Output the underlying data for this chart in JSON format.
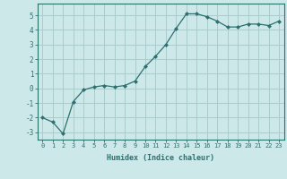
{
  "x": [
    0,
    1,
    2,
    3,
    4,
    5,
    6,
    7,
    8,
    9,
    10,
    11,
    12,
    13,
    14,
    15,
    16,
    17,
    18,
    19,
    20,
    21,
    22,
    23
  ],
  "y": [
    -2.0,
    -2.3,
    -3.1,
    -0.9,
    -0.1,
    0.1,
    0.2,
    0.1,
    0.2,
    0.5,
    1.5,
    2.2,
    3.0,
    4.1,
    5.1,
    5.1,
    4.9,
    4.6,
    4.2,
    4.2,
    4.4,
    4.4,
    4.3,
    4.6
  ],
  "xlabel": "Humidex (Indice chaleur)",
  "ylim": [
    -3.5,
    5.8
  ],
  "xlim": [
    -0.5,
    23.5
  ],
  "bg_color": "#cce8e8",
  "line_color": "#2d7070",
  "marker_color": "#2d7070",
  "grid_color": "#aacccc",
  "yticks": [
    -3,
    -2,
    -1,
    0,
    1,
    2,
    3,
    4,
    5
  ],
  "xticks": [
    0,
    1,
    2,
    3,
    4,
    5,
    6,
    7,
    8,
    9,
    10,
    11,
    12,
    13,
    14,
    15,
    16,
    17,
    18,
    19,
    20,
    21,
    22,
    23
  ]
}
